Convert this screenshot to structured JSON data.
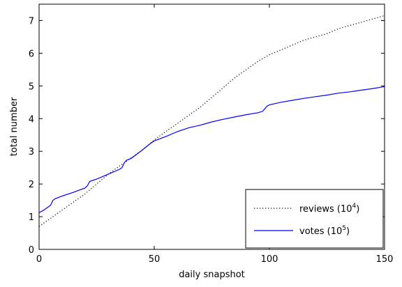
{
  "chart_data": {
    "type": "line",
    "title": "",
    "xlabel": "daily snapshot",
    "ylabel": "total number",
    "xlim": [
      0,
      150
    ],
    "ylim": [
      0,
      7.5
    ],
    "xticks": [
      0,
      50,
      100,
      150
    ],
    "yticks": [
      0,
      1,
      2,
      3,
      4,
      5,
      6,
      7
    ],
    "grid": false,
    "legend_position": "bottom-right",
    "series": [
      {
        "name": "reviews (10^4)",
        "label_base": "reviews (10",
        "label_exp": "4",
        "label_tail": ")",
        "style": "dotted",
        "color": "#000000",
        "x": [
          0,
          5,
          10,
          15,
          20,
          25,
          30,
          35,
          40,
          45,
          50,
          55,
          60,
          65,
          70,
          75,
          80,
          85,
          90,
          95,
          100,
          105,
          110,
          115,
          120,
          125,
          130,
          135,
          140,
          145,
          150
        ],
        "y": [
          0.7,
          0.95,
          1.2,
          1.45,
          1.7,
          2.0,
          2.3,
          2.55,
          2.8,
          3.05,
          3.35,
          3.6,
          3.85,
          4.1,
          4.35,
          4.65,
          4.95,
          5.25,
          5.5,
          5.75,
          5.95,
          6.1,
          6.25,
          6.4,
          6.5,
          6.6,
          6.75,
          6.85,
          6.95,
          7.05,
          7.15
        ]
      },
      {
        "name": "votes (10^5)",
        "label_base": "votes (10",
        "label_exp": "5",
        "label_tail": ")",
        "style": "solid",
        "color": "#0000ff",
        "x": [
          0,
          2,
          4,
          5,
          6,
          7,
          10,
          15,
          20,
          21,
          22,
          25,
          30,
          35,
          36,
          37,
          38,
          40,
          45,
          48,
          50,
          55,
          60,
          65,
          70,
          75,
          80,
          85,
          90,
          95,
          97,
          98,
          99,
          100,
          105,
          110,
          115,
          120,
          125,
          130,
          135,
          140,
          145,
          150
        ],
        "y": [
          1.12,
          1.2,
          1.3,
          1.35,
          1.5,
          1.55,
          1.63,
          1.75,
          1.88,
          1.95,
          2.08,
          2.15,
          2.3,
          2.45,
          2.5,
          2.65,
          2.73,
          2.78,
          3.05,
          3.22,
          3.32,
          3.45,
          3.6,
          3.72,
          3.8,
          3.9,
          3.98,
          4.05,
          4.12,
          4.18,
          4.22,
          4.3,
          4.38,
          4.42,
          4.5,
          4.56,
          4.62,
          4.67,
          4.72,
          4.78,
          4.82,
          4.87,
          4.92,
          4.98
        ]
      }
    ]
  }
}
